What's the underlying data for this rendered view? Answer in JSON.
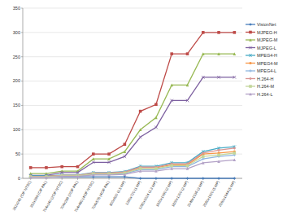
{
  "chart_data": {
    "type": "line",
    "categories": [
      "352x240 (CIF NTSC)",
      "352x288 (CIF PAL)",
      "704x240 (2CIF NTSC)",
      "704x288 (2CIF PAL)",
      "704x480 (4CIF NTSC)",
      "704x576 (4CIF PAL)",
      "800x600 (0.5 MP)",
      "1280x720 (1 MP)",
      "1280x1024 (1.3 MP)",
      "1920x1080 (2 MP)",
      "1600x1200 (2 MP)",
      "2048x1536 (3 MP)",
      "2560x1920 (5 MP)",
      "2592x1944 (5 MP)"
    ],
    "series": [
      {
        "name": "VisionNet",
        "color": "#4a7ebb",
        "marker": "diamond",
        "values": [
          3,
          3,
          3,
          3,
          3,
          3,
          3,
          0,
          0,
          0,
          0,
          0,
          0,
          0
        ]
      },
      {
        "name": "MJPEG-H",
        "color": "#be4b48",
        "marker": "square",
        "values": [
          22,
          22,
          24,
          24,
          50,
          50,
          70,
          138,
          152,
          256,
          256,
          300,
          300,
          300
        ]
      },
      {
        "name": "MJPEG-M",
        "color": "#98b954",
        "marker": "triangle",
        "values": [
          10,
          10,
          15,
          15,
          40,
          40,
          55,
          100,
          125,
          192,
          192,
          256,
          256,
          256
        ]
      },
      {
        "name": "MJPEG-L",
        "color": "#7d60a0",
        "marker": "x",
        "values": [
          6,
          6,
          12,
          12,
          33,
          33,
          45,
          85,
          105,
          160,
          160,
          208,
          208,
          208
        ]
      },
      {
        "name": "MPEG4-H",
        "color": "#46aac5",
        "marker": "star",
        "values": [
          5,
          5,
          7,
          7,
          12,
          12,
          14,
          25,
          25,
          32,
          32,
          55,
          62,
          65
        ]
      },
      {
        "name": "MPEG4-M",
        "color": "#f79646",
        "marker": "circle",
        "values": [
          4,
          4,
          6,
          6,
          10,
          10,
          12,
          22,
          22,
          28,
          28,
          50,
          52,
          55
        ]
      },
      {
        "name": "MPEG4-L",
        "color": "#8fb6e0",
        "marker": "plus",
        "values": [
          3,
          3,
          5,
          5,
          8,
          8,
          10,
          18,
          18,
          24,
          24,
          40,
          45,
          48
        ]
      },
      {
        "name": "H.264-H",
        "color": "#d99694",
        "marker": "diamond",
        "values": [
          4,
          4,
          6,
          6,
          11,
          11,
          13,
          23,
          23,
          30,
          30,
          52,
          58,
          62
        ]
      },
      {
        "name": "H.264-M",
        "color": "#c3d69b",
        "marker": "square",
        "values": [
          3,
          3,
          5,
          5,
          9,
          9,
          11,
          20,
          20,
          26,
          26,
          45,
          48,
          52
        ]
      },
      {
        "name": "H.264-L",
        "color": "#b3a2c7",
        "marker": "triangle",
        "values": [
          2,
          2,
          4,
          4,
          7,
          7,
          8,
          15,
          15,
          20,
          20,
          32,
          35,
          38
        ]
      }
    ],
    "ylim": [
      0,
      350
    ],
    "yticks": [
      0,
      50,
      100,
      150,
      200,
      250,
      300,
      350
    ],
    "grid": true,
    "legend": "right"
  }
}
